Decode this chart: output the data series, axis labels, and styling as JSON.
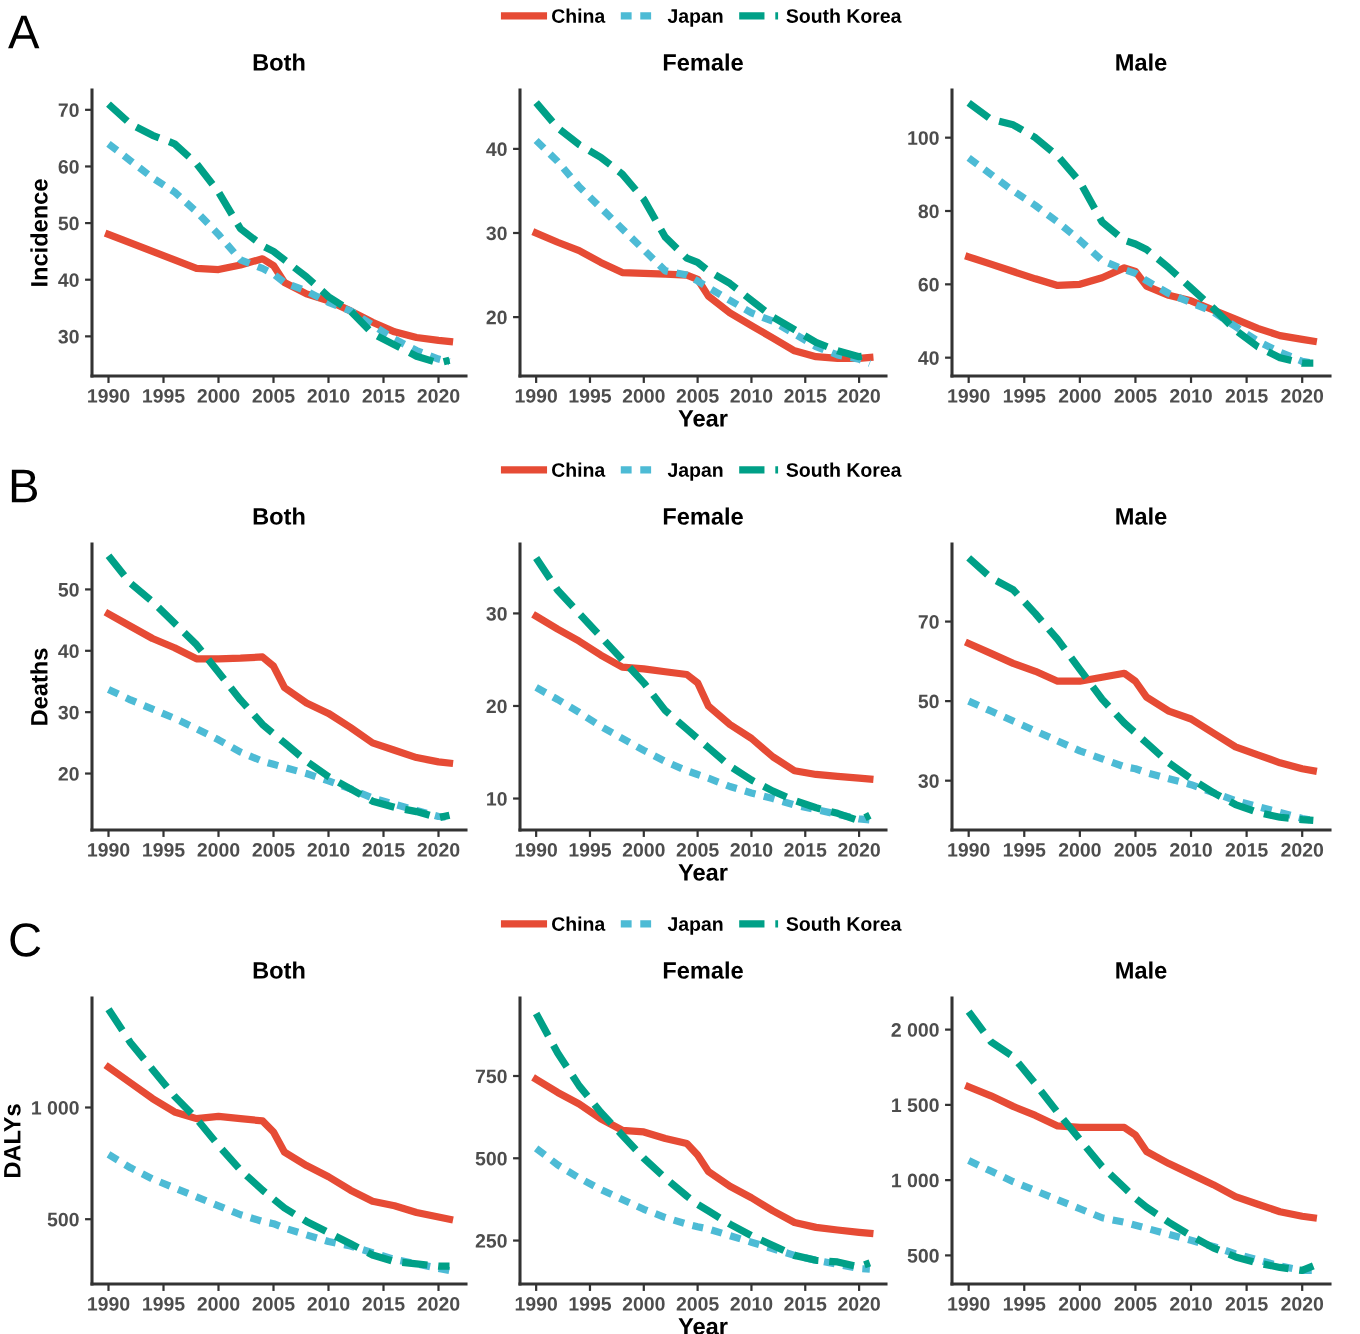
{
  "chart_data": [
    {
      "type": "line",
      "title": "Both",
      "ylabel": "Incidence",
      "annotations": [
        "A"
      ],
      "xlim": [
        1988.5,
        2022.5
      ],
      "xticks": [
        1990,
        1995,
        2000,
        2005,
        2010,
        2015,
        2020
      ],
      "ylim": [
        23,
        73.5
      ],
      "yticks": [
        30,
        40,
        50,
        60,
        70
      ],
      "legend": false,
      "grid": false,
      "x": [
        1990,
        1992,
        1994,
        1996,
        1998,
        2000,
        2002,
        2004,
        2005,
        2006,
        2008,
        2010,
        2012,
        2014,
        2016,
        2018,
        2020,
        2021
      ],
      "series": [
        {
          "color": "#e64b35",
          "line_style": "solid",
          "values": [
            48,
            46.5,
            45,
            43.5,
            42,
            41.8,
            42.6,
            43.7,
            42.5,
            39.5,
            37.5,
            36.3,
            34.5,
            32.5,
            30.8,
            29.8,
            29.3,
            29.1
          ]
        },
        {
          "color": "#4dbbd5",
          "line_style": "dotted",
          "values": [
            64,
            61,
            58,
            55.5,
            52,
            48,
            43.5,
            42,
            41,
            39.5,
            38,
            36,
            34.5,
            32,
            29.5,
            27.5,
            26,
            25.5
          ]
        },
        {
          "color": "#00a087",
          "line_style": "dashed",
          "values": [
            71,
            67.5,
            65.5,
            64,
            60.5,
            55.5,
            49,
            46,
            45,
            43.5,
            40.5,
            37,
            34.5,
            30.5,
            28.5,
            26.5,
            25.3,
            25.8
          ]
        }
      ]
    },
    {
      "type": "line",
      "title": "Female",
      "xlabel": "Year",
      "xlim": [
        1988.5,
        2022.5
      ],
      "xticks": [
        1990,
        1995,
        2000,
        2005,
        2010,
        2015,
        2020
      ],
      "ylim": [
        13,
        47
      ],
      "yticks": [
        20,
        30,
        40
      ],
      "legend": "top",
      "grid": false,
      "x": [
        1990,
        1992,
        1994,
        1996,
        1998,
        2000,
        2002,
        2004,
        2005,
        2006,
        2008,
        2010,
        2012,
        2014,
        2016,
        2018,
        2020,
        2021
      ],
      "series": [
        {
          "name": "China",
          "color": "#e64b35",
          "line_style": "solid",
          "values": [
            30,
            28.9,
            27.9,
            26.5,
            25.3,
            25.2,
            25.1,
            25,
            24.5,
            22.5,
            20.5,
            19,
            17.5,
            16,
            15.3,
            15.1,
            15.1,
            15.2
          ]
        },
        {
          "name": "Japan",
          "color": "#4dbbd5",
          "line_style": "dotted",
          "values": [
            41,
            38.5,
            35.5,
            33,
            30.5,
            28,
            25.5,
            25,
            24.3,
            23.5,
            22,
            20.5,
            19.5,
            18,
            16.5,
            15.5,
            15,
            14.5
          ]
        },
        {
          "name": "South Korea",
          "color": "#00a087",
          "line_style": "dashed",
          "values": [
            45.5,
            42.5,
            40.5,
            39,
            37,
            34,
            29.5,
            27,
            26.5,
            25.5,
            24,
            22,
            20,
            18.5,
            17,
            16,
            15.3,
            15.5
          ]
        }
      ]
    },
    {
      "type": "line",
      "title": "Male",
      "xlim": [
        1988.5,
        2022.5
      ],
      "xticks": [
        1990,
        1995,
        2000,
        2005,
        2010,
        2015,
        2020
      ],
      "ylim": [
        35,
        113
      ],
      "yticks": [
        40,
        60,
        80,
        100
      ],
      "legend": false,
      "grid": false,
      "x": [
        1990,
        1992,
        1994,
        1996,
        1998,
        2000,
        2002,
        2004,
        2005,
        2006,
        2008,
        2010,
        2012,
        2014,
        2016,
        2018,
        2020,
        2021
      ],
      "series": [
        {
          "color": "#e64b35",
          "line_style": "solid",
          "values": [
            67.5,
            65.5,
            63.5,
            61.5,
            59.7,
            60,
            61.8,
            64.5,
            63.5,
            59.5,
            57,
            55.5,
            53,
            50.5,
            48,
            46,
            45,
            44.5
          ]
        },
        {
          "color": "#4dbbd5",
          "line_style": "dotted",
          "values": [
            94.5,
            90,
            85.5,
            81.5,
            77,
            72,
            66.5,
            64,
            63,
            61,
            57.5,
            55,
            52.5,
            48.5,
            44.5,
            41.5,
            39,
            38.5
          ]
        },
        {
          "color": "#00a087",
          "line_style": "dashed",
          "values": [
            109.5,
            105,
            103.5,
            100,
            95,
            88,
            77,
            72,
            71,
            69.5,
            64.5,
            59,
            53.5,
            47.5,
            43,
            40,
            38.5,
            38.5
          ]
        }
      ]
    },
    {
      "type": "line",
      "title": "Both",
      "ylabel": "Deaths",
      "annotations": [
        "B"
      ],
      "xlim": [
        1988.5,
        2022.5
      ],
      "xticks": [
        1990,
        1995,
        2000,
        2005,
        2010,
        2015,
        2020
      ],
      "ylim": [
        10.8,
        57.4
      ],
      "yticks": [
        20,
        30,
        40,
        50
      ],
      "legend": false,
      "grid": false,
      "x": [
        1990,
        1992,
        1994,
        1996,
        1998,
        2000,
        2002,
        2004,
        2005,
        2006,
        2008,
        2010,
        2012,
        2014,
        2016,
        2018,
        2020,
        2021
      ],
      "series": [
        {
          "color": "#e64b35",
          "line_style": "solid",
          "values": [
            46,
            44,
            42,
            40.5,
            38.7,
            38.7,
            38.8,
            39,
            37.5,
            34,
            31.5,
            29.8,
            27.5,
            25,
            23.8,
            22.6,
            21.9,
            21.7
          ]
        },
        {
          "color": "#4dbbd5",
          "line_style": "dotted",
          "values": [
            33.7,
            32,
            30.5,
            29,
            27.3,
            25.5,
            23.5,
            22,
            21.5,
            21,
            20,
            18.8,
            17.5,
            16,
            15,
            14,
            13,
            12.9
          ]
        },
        {
          "color": "#00a087",
          "line_style": "dashed",
          "values": [
            55.5,
            51,
            48,
            44.5,
            41,
            36.5,
            32,
            28,
            26.5,
            25,
            22,
            19.5,
            17.5,
            15.5,
            14.5,
            13.8,
            12.8,
            13.2
          ]
        }
      ]
    },
    {
      "type": "line",
      "title": "Female",
      "xlabel": "Year",
      "xlim": [
        1988.5,
        2022.5
      ],
      "xticks": [
        1990,
        1995,
        2000,
        2005,
        2010,
        2015,
        2020
      ],
      "ylim": [
        6.6,
        37.5
      ],
      "yticks": [
        10,
        20,
        30
      ],
      "legend": "top",
      "grid": false,
      "x": [
        1990,
        1992,
        1994,
        1996,
        1998,
        2000,
        2002,
        2004,
        2005,
        2006,
        2008,
        2010,
        2012,
        2014,
        2016,
        2018,
        2020,
        2021
      ],
      "series": [
        {
          "name": "China",
          "color": "#e64b35",
          "line_style": "solid",
          "values": [
            29.7,
            28.3,
            27,
            25.5,
            24.2,
            24,
            23.7,
            23.4,
            22.5,
            20,
            18,
            16.5,
            14.5,
            13,
            12.6,
            12.4,
            12.2,
            12.1
          ]
        },
        {
          "name": "Japan",
          "color": "#4dbbd5",
          "line_style": "dotted",
          "values": [
            22,
            20.7,
            19.3,
            17.8,
            16.5,
            15.2,
            14,
            13,
            12.6,
            12.2,
            11.3,
            10.6,
            10,
            9.3,
            8.8,
            8.3,
            7.8,
            7.7
          ]
        },
        {
          "name": "South Korea",
          "color": "#00a087",
          "line_style": "dashed",
          "values": [
            36,
            32.5,
            30,
            27.5,
            25,
            22.5,
            19.5,
            17.5,
            16.5,
            15.5,
            13.5,
            12,
            10.8,
            9.8,
            9,
            8.4,
            7.6,
            8.2
          ]
        }
      ]
    },
    {
      "type": "line",
      "title": "Male",
      "xlim": [
        1988.5,
        2022.5
      ],
      "xticks": [
        1990,
        1995,
        2000,
        2005,
        2010,
        2015,
        2020
      ],
      "ylim": [
        17.6,
        89.5
      ],
      "yticks": [
        30,
        50,
        70
      ],
      "legend": false,
      "grid": false,
      "x": [
        1990,
        1992,
        1994,
        1996,
        1998,
        2000,
        2002,
        2004,
        2005,
        2006,
        2008,
        2010,
        2012,
        2014,
        2016,
        2018,
        2020,
        2021
      ],
      "series": [
        {
          "color": "#e64b35",
          "line_style": "solid",
          "values": [
            64.5,
            62,
            59.5,
            57.5,
            55,
            55,
            56,
            57,
            55,
            51,
            47.5,
            45.5,
            42,
            38.5,
            36.5,
            34.5,
            33,
            32.5
          ]
        },
        {
          "color": "#4dbbd5",
          "line_style": "dotted",
          "values": [
            50,
            47.5,
            45,
            42.5,
            40,
            37.5,
            35.5,
            33.5,
            33,
            32,
            30.5,
            29,
            27,
            25,
            23.5,
            22,
            20.5,
            20
          ]
        },
        {
          "color": "#00a087",
          "line_style": "dashed",
          "values": [
            86,
            81,
            78,
            72,
            65.5,
            58,
            50.5,
            44.5,
            42,
            39.5,
            34.5,
            30.5,
            27,
            24,
            22,
            20.8,
            20.2,
            20
          ]
        }
      ]
    },
    {
      "type": "line",
      "title": "Both",
      "ylabel": "DALYs",
      "annotations": [
        "C"
      ],
      "xlim": [
        1988.5,
        2022.5
      ],
      "xticks": [
        1990,
        1995,
        2000,
        2005,
        2010,
        2015,
        2020
      ],
      "ylim": [
        210,
        1490
      ],
      "yticks": [
        500,
        {
          "value": 1000,
          "label": "1 000"
        }
      ],
      "legend": false,
      "grid": false,
      "x": [
        1990,
        1992,
        1994,
        1996,
        1998,
        2000,
        2002,
        2004,
        2005,
        2006,
        2008,
        2010,
        2012,
        2014,
        2016,
        2018,
        2020,
        2021
      ],
      "series": [
        {
          "color": "#e64b35",
          "line_style": "solid",
          "values": [
            1180,
            1110,
            1040,
            980,
            950,
            960,
            950,
            940,
            890,
            800,
            740,
            690,
            630,
            580,
            560,
            530,
            510,
            500
          ]
        },
        {
          "color": "#4dbbd5",
          "line_style": "dotted",
          "values": [
            790,
            730,
            680,
            640,
            600,
            560,
            520,
            490,
            480,
            460,
            430,
            400,
            380,
            350,
            320,
            300,
            280,
            270
          ]
        },
        {
          "color": "#00a087",
          "line_style": "dashed",
          "values": [
            1440,
            1290,
            1170,
            1050,
            950,
            830,
            720,
            630,
            590,
            550,
            490,
            440,
            390,
            340,
            310,
            300,
            290,
            290
          ]
        }
      ]
    },
    {
      "type": "line",
      "title": "Female",
      "xlabel": "Year",
      "xlim": [
        1988.5,
        2022.5
      ],
      "xticks": [
        1990,
        1995,
        2000,
        2005,
        2010,
        2015,
        2020
      ],
      "ylim": [
        118,
        987
      ],
      "yticks": [
        250,
        500,
        750
      ],
      "legend": "top",
      "grid": false,
      "x": [
        1990,
        1992,
        1994,
        1996,
        1998,
        2000,
        2002,
        2004,
        2005,
        2006,
        2008,
        2010,
        2012,
        2014,
        2016,
        2018,
        2020,
        2021
      ],
      "series": [
        {
          "name": "China",
          "color": "#e64b35",
          "line_style": "solid",
          "values": [
            740,
            700,
            665,
            620,
            585,
            580,
            560,
            545,
            510,
            460,
            415,
            380,
            340,
            305,
            290,
            282,
            275,
            272
          ]
        },
        {
          "name": "Japan",
          "color": "#4dbbd5",
          "line_style": "dotted",
          "values": [
            530,
            480,
            440,
            405,
            375,
            345,
            320,
            300,
            292,
            285,
            265,
            245,
            225,
            205,
            190,
            178,
            165,
            163
          ]
        },
        {
          "name": "South Korea",
          "color": "#00a087",
          "line_style": "dashed",
          "values": [
            940,
            820,
            720,
            640,
            570,
            500,
            440,
            385,
            360,
            340,
            300,
            265,
            235,
            205,
            190,
            185,
            170,
            182
          ]
        }
      ]
    },
    {
      "type": "line",
      "title": "Male",
      "xlim": [
        1988.5,
        2022.5
      ],
      "xticks": [
        1990,
        1995,
        2000,
        2005,
        2010,
        2015,
        2020
      ],
      "ylim": [
        310,
        2210
      ],
      "yticks": [
        500,
        {
          "value": 1000,
          "label": "1 000"
        },
        {
          "value": 1500,
          "label": "1 500"
        },
        {
          "value": 2000,
          "label": "2 000"
        }
      ],
      "legend": false,
      "grid": false,
      "x": [
        1990,
        1992,
        1994,
        1996,
        1998,
        2000,
        2002,
        2004,
        2005,
        2006,
        2008,
        2010,
        2012,
        2014,
        2016,
        2018,
        2020,
        2021
      ],
      "series": [
        {
          "color": "#e64b35",
          "line_style": "solid",
          "values": [
            1620,
            1560,
            1490,
            1430,
            1360,
            1350,
            1350,
            1350,
            1300,
            1190,
            1110,
            1040,
            970,
            890,
            840,
            790,
            760,
            750
          ]
        },
        {
          "color": "#4dbbd5",
          "line_style": "dotted",
          "values": [
            1130,
            1060,
            990,
            930,
            870,
            810,
            750,
            720,
            700,
            680,
            640,
            600,
            560,
            510,
            470,
            430,
            400,
            400
          ]
        },
        {
          "color": "#00a087",
          "line_style": "dashed",
          "values": [
            2120,
            1920,
            1820,
            1640,
            1450,
            1270,
            1090,
            950,
            880,
            820,
            720,
            630,
            550,
            490,
            450,
            420,
            400,
            430
          ]
        }
      ]
    }
  ]
}
